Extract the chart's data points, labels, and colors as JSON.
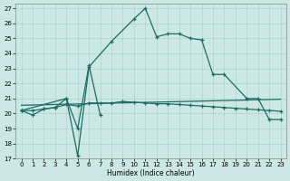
{
  "xlabel": "Humidex (Indice chaleur)",
  "xlim": [
    -0.5,
    23.5
  ],
  "ylim": [
    17,
    27.3
  ],
  "yticks": [
    17,
    18,
    19,
    20,
    21,
    22,
    23,
    24,
    25,
    26,
    27
  ],
  "xticks": [
    0,
    1,
    2,
    3,
    4,
    5,
    6,
    7,
    8,
    9,
    10,
    11,
    12,
    13,
    14,
    15,
    16,
    17,
    18,
    19,
    20,
    21,
    22,
    23
  ],
  "bg_color": "#cce8e5",
  "line_color": "#1e6b65",
  "series_zigzag_x": [
    0,
    1,
    2,
    3,
    4,
    5,
    6,
    7
  ],
  "series_zigzag_y": [
    20.2,
    19.9,
    20.3,
    20.4,
    21.0,
    19.0,
    23.2,
    19.9
  ],
  "series_main_x": [
    0,
    4,
    5,
    6,
    8,
    10,
    11,
    12,
    13,
    14,
    15,
    16,
    17,
    18,
    20,
    21,
    22,
    23
  ],
  "series_main_y": [
    20.2,
    21.0,
    17.2,
    23.1,
    24.8,
    26.3,
    27.0,
    25.1,
    25.3,
    25.3,
    25.0,
    24.9,
    22.6,
    22.6,
    21.0,
    21.0,
    19.6,
    19.6
  ],
  "series_flat_x": [
    0,
    1,
    2,
    3,
    4,
    5,
    6,
    7,
    8,
    9,
    10,
    11,
    12,
    13,
    14,
    15,
    16,
    17,
    18,
    19,
    20,
    21,
    22,
    23
  ],
  "series_flat_y": [
    20.2,
    20.2,
    20.3,
    20.4,
    20.6,
    20.5,
    20.7,
    20.7,
    20.7,
    20.8,
    20.75,
    20.7,
    20.65,
    20.65,
    20.6,
    20.55,
    20.5,
    20.45,
    20.4,
    20.35,
    20.3,
    20.25,
    20.2,
    20.15
  ],
  "series_trend_x": [
    0,
    23
  ],
  "series_trend_y": [
    20.55,
    20.95
  ]
}
